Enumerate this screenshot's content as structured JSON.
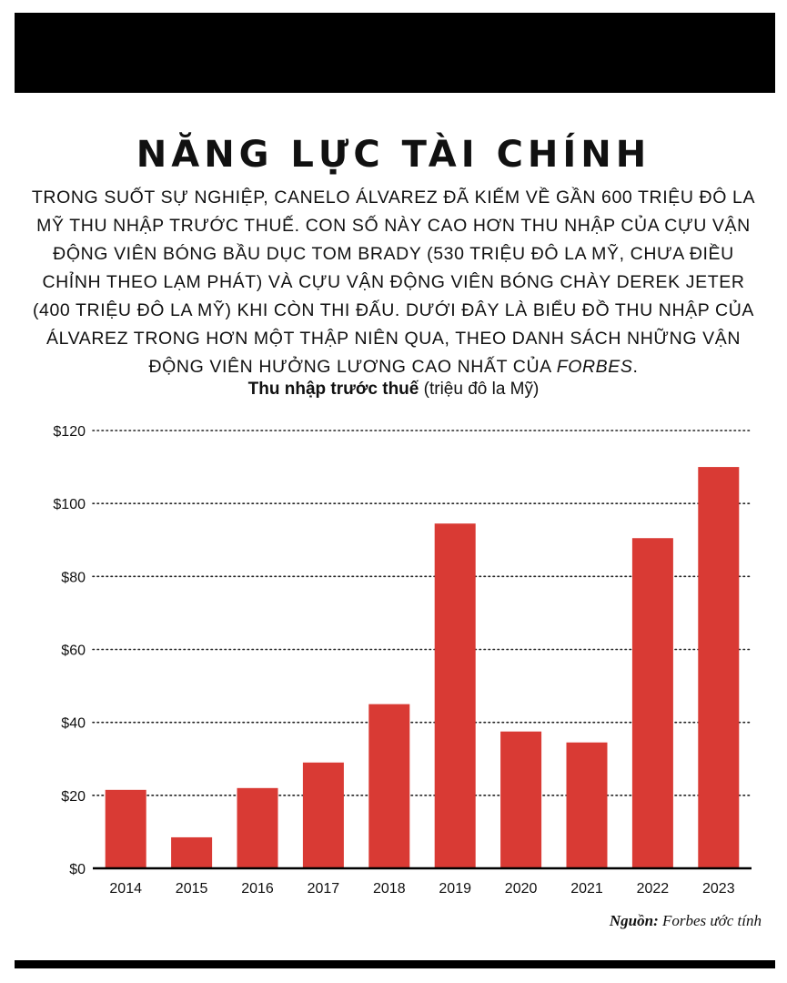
{
  "title": "NĂNG LỰC TÀI CHÍNH",
  "intro": {
    "text_before": "Trong suốt sự nghiệp, Canelo Álvarez đã kiếm về gần 600 triệu đô la Mỹ thu nhập trước thuế. Con số này cao hơn thu nhập của cựu vận động viên bóng bầu dục Tom Brady (530 triệu đô la Mỹ, chưa điều chỉnh theo lạm phát) và cựu vận động viên bóng chày Derek Jeter (400 triệu đô la Mỹ) khi còn thi đấu. Dưới đây là biểu đồ thu nhập của Álvarez trong hơn một thập niên qua, theo danh sách những vận động viên hưởng lương cao nhất của ",
    "publication": "Forbes",
    "text_after": "."
  },
  "chart_subtitle": {
    "bold": "Thu nhập trước thuế",
    "normal": " (triệu đô la Mỹ)"
  },
  "source": {
    "label": "Nguồn:",
    "text": " Forbes ước tính"
  },
  "colors": {
    "bar": "#d93a34",
    "gridline": "#222222",
    "axis": "#000000",
    "bars_top_band": "#000000"
  },
  "chart_data": {
    "type": "bar",
    "categories": [
      "2014",
      "2015",
      "2016",
      "2017",
      "2018",
      "2019",
      "2020",
      "2021",
      "2022",
      "2023"
    ],
    "values": [
      21.5,
      8.5,
      22,
      29,
      45,
      94.5,
      37.5,
      34.5,
      90.5,
      110
    ],
    "ylim": [
      0,
      120
    ],
    "yticks": [
      0,
      20,
      40,
      60,
      80,
      100,
      120
    ],
    "ytick_labels": [
      "$0",
      "$20",
      "$40",
      "$60",
      "$80",
      "$100",
      "$120"
    ],
    "grid": true,
    "grid_style": "dotted",
    "legend": "none"
  }
}
